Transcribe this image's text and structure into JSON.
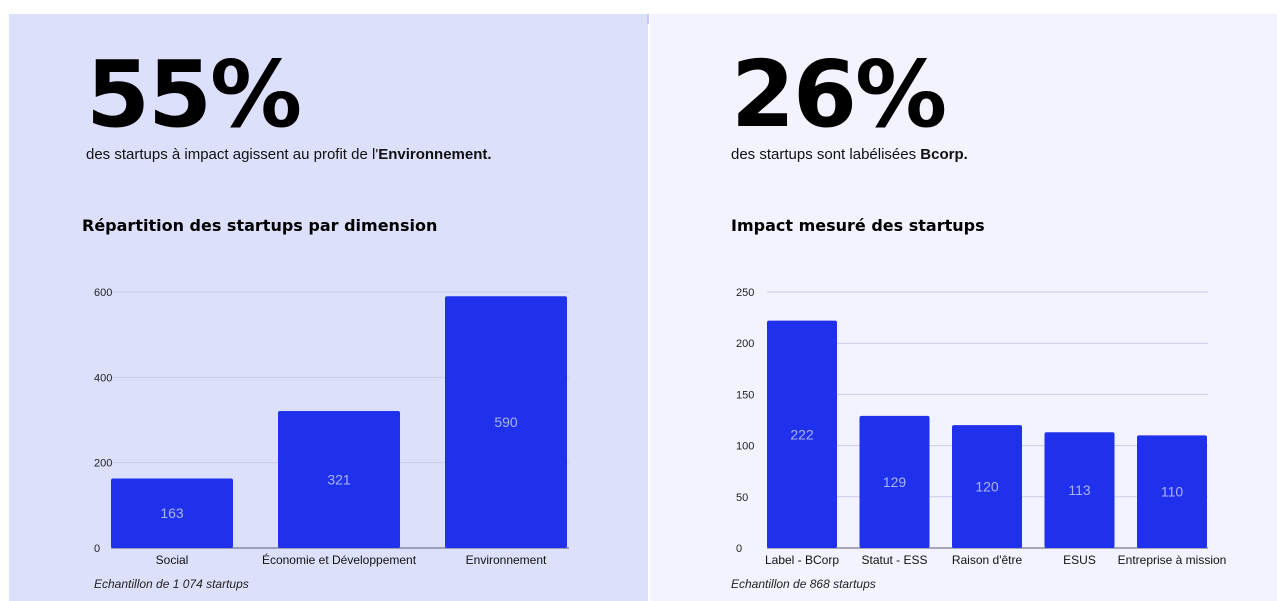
{
  "left": {
    "stat_value": "55%",
    "stat_text_before": "des startups à impact agissent au profit de l'",
    "stat_text_bold": "Environnement.",
    "chart_title": "Répartition des startups par dimension",
    "sample_note": "Echantillon de 1 074 startups"
  },
  "right": {
    "stat_value": "26%",
    "stat_text_before": "des startups sont labélisées ",
    "stat_text_bold": "Bcorp.",
    "chart_title": "Impact mesuré des startups",
    "sample_note": "Echantillon de 868 startups"
  },
  "colors": {
    "bar": "#1f31ec",
    "bar_label": "#aab4f7",
    "grid": "#c9cce6",
    "axis": "#555a7a",
    "left_bg": "#dde0fb",
    "right_bg": "#f2f3fe"
  },
  "chart_data": [
    {
      "type": "bar",
      "title": "Répartition des startups par dimension",
      "categories": [
        "Social",
        "Économie et Développement",
        "Environnement"
      ],
      "values": [
        163,
        321,
        590
      ],
      "ylim": [
        0,
        600
      ],
      "yticks": [
        0,
        200,
        400,
        600
      ],
      "grid": true,
      "data_labels": true
    },
    {
      "type": "bar",
      "title": "Impact mesuré des startups",
      "categories": [
        "Label - BCorp",
        "Statut - ESS",
        "Raison d'être",
        "ESUS",
        "Entreprise à mission"
      ],
      "values": [
        222,
        129,
        120,
        113,
        110
      ],
      "ylim": [
        0,
        250
      ],
      "yticks": [
        0,
        50,
        100,
        150,
        200,
        250
      ],
      "grid": true,
      "data_labels": true
    }
  ]
}
